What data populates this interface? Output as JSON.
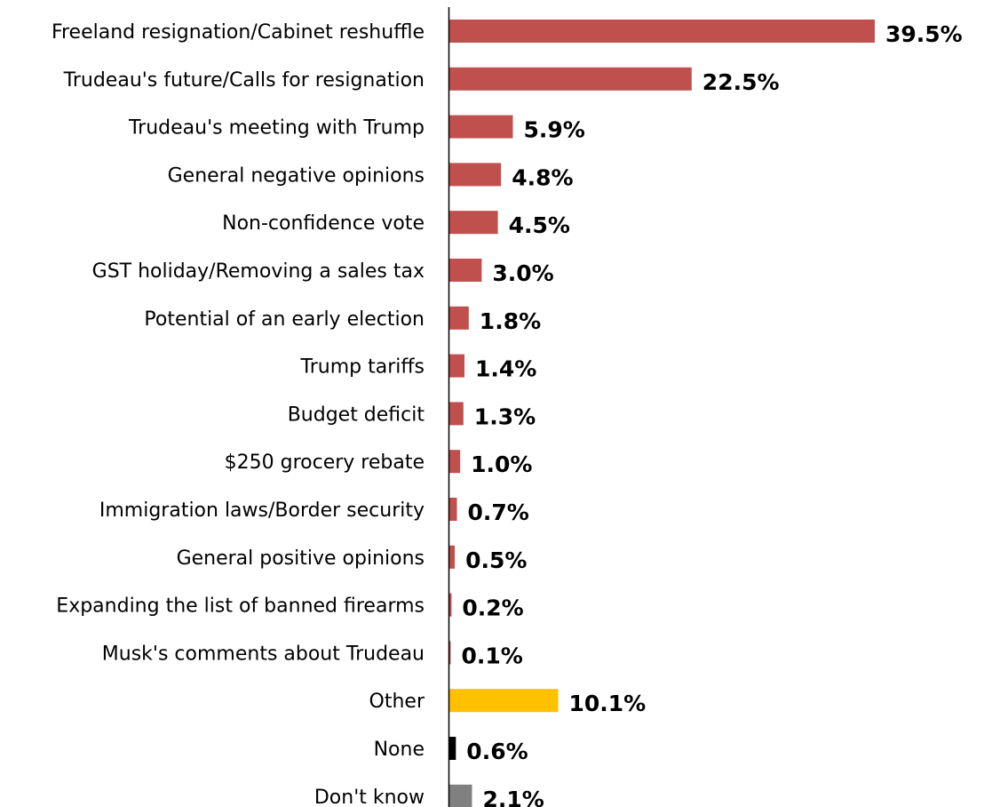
{
  "chart_data": {
    "type": "bar",
    "orientation": "horizontal",
    "title": "",
    "xlabel": "",
    "ylabel": "",
    "categories": [
      "Freeland resignation/Cabinet reshuffle",
      "Trudeau's future/Calls for resignation",
      "Trudeau's meeting with Trump",
      "General negative opinions",
      "Non-confidence vote",
      "GST holiday/Removing a sales tax",
      "Potential of an early election",
      "Trump tariffs",
      "Budget deficit",
      "$250 grocery rebate",
      "Immigration laws/Border security",
      "General positive opinions",
      "Expanding the list of banned firearms",
      "Musk's comments about Trudeau",
      "Other",
      "None",
      "Don't know"
    ],
    "values": [
      39.5,
      22.5,
      5.9,
      4.8,
      4.5,
      3.0,
      1.8,
      1.4,
      1.3,
      1.0,
      0.7,
      0.5,
      0.2,
      0.1,
      10.1,
      0.6,
      2.1
    ],
    "value_labels": [
      "39.5%",
      "22.5%",
      "5.9%",
      "4.8%",
      "4.5%",
      "3.0%",
      "1.8%",
      "1.4%",
      "1.3%",
      "1.0%",
      "0.7%",
      "0.5%",
      "0.2%",
      "0.1%",
      "10.1%",
      "0.6%",
      "2.1%"
    ],
    "bar_colors": [
      "#c0504d",
      "#c0504d",
      "#c0504d",
      "#c0504d",
      "#c0504d",
      "#c0504d",
      "#c0504d",
      "#c0504d",
      "#c0504d",
      "#c0504d",
      "#c0504d",
      "#c0504d",
      "#c0504d",
      "#c0504d",
      "#ffc000",
      "#000000",
      "#808080"
    ],
    "xlim": [
      0,
      39.5
    ],
    "grid": false,
    "legend": "none",
    "axis_color": "#000000"
  }
}
